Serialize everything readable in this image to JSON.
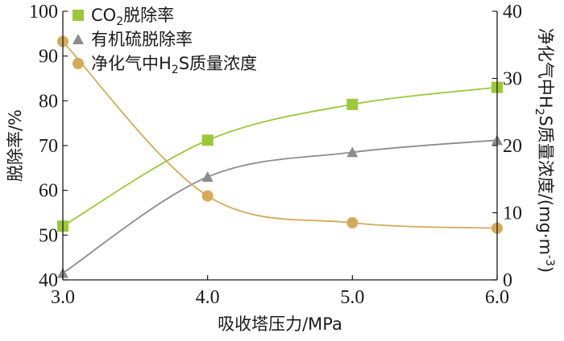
{
  "chart_data": {
    "type": "line",
    "x": [
      3.0,
      4.0,
      5.0,
      6.0
    ],
    "x_tick_labels": [
      "3.0",
      "4.0",
      "5.0",
      "6.0"
    ],
    "xlim": [
      3.0,
      6.0
    ],
    "xlabel": "吸收塔压力/MPa",
    "ylabel_left": "脱除率/%",
    "ylim_left": [
      40,
      100
    ],
    "yticks_left": [
      "40",
      "50",
      "60",
      "70",
      "80",
      "90",
      "100"
    ],
    "ylabel_right_main": "净化气中H",
    "ylabel_right_sub": "2",
    "ylabel_right_tail": "S质量浓度/(mg·m",
    "ylabel_right_sup": "-3",
    "ylabel_right_close": ")",
    "ylim_right": [
      0,
      40
    ],
    "yticks_right": [
      "0",
      "10",
      "20",
      "30",
      "40"
    ],
    "legend_position": "top-left",
    "grid": false,
    "series": [
      {
        "legend_main": "CO",
        "legend_sub": "2",
        "legend_tail": "脱除率",
        "axis": "left",
        "marker": "square",
        "color": "#9dc73b",
        "values": [
          52.0,
          71.2,
          79.2,
          83.0
        ]
      },
      {
        "legend_main": "有机硫脱除率",
        "legend_sub": "",
        "legend_tail": "",
        "axis": "left",
        "marker": "triangle",
        "color": "#8c8c8c",
        "values": [
          41.5,
          63.0,
          68.5,
          71.2
        ]
      },
      {
        "legend_main": "净化气中H",
        "legend_sub": "2",
        "legend_tail": "S质量浓度",
        "axis": "right",
        "marker": "circle",
        "color": "#d4aa5a",
        "values": [
          35.5,
          12.5,
          8.5,
          7.7
        ]
      }
    ]
  }
}
